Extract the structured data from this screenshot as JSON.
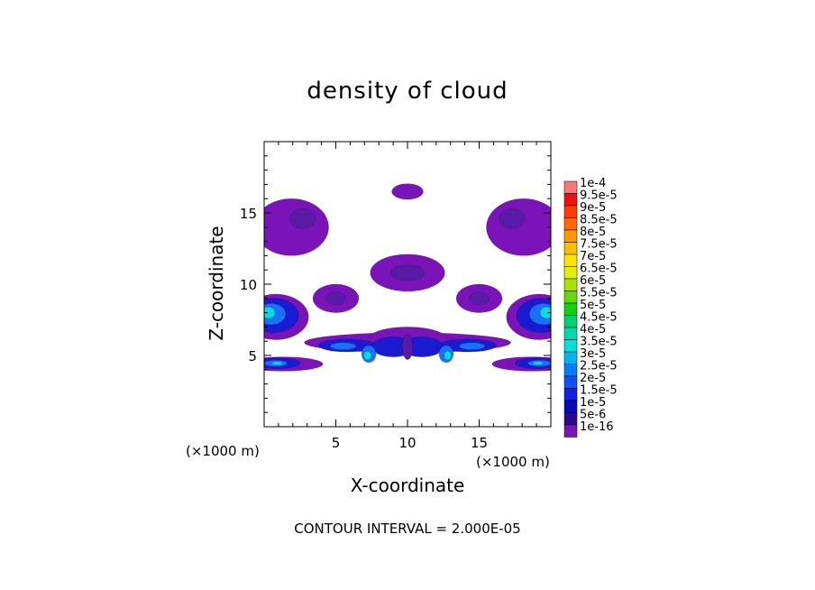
{
  "chart_data": {
    "type": "heatmap",
    "title": "density of cloud",
    "xlabel": "X-coordinate",
    "ylabel": "Z-coordinate",
    "x_unit": "(×1000 m)",
    "xlim": [
      0,
      20
    ],
    "ylim": [
      0,
      20
    ],
    "x_ticks": [
      5,
      10,
      15
    ],
    "y_ticks": [
      5,
      10,
      15
    ],
    "footer": "CONTOUR INTERVAL = 2.000E-05",
    "colorbar": {
      "labels": [
        "1e-4",
        "9.5e-5",
        "9e-5",
        "8.5e-5",
        "8e-5",
        "7.5e-5",
        "7e-5",
        "6.5e-5",
        "6e-5",
        "5.5e-5",
        "5e-5",
        "4.5e-5",
        "4e-5",
        "3.5e-5",
        "3e-5",
        "2.5e-5",
        "2e-5",
        "1.5e-5",
        "1e-5",
        "5e-6",
        "1e-16"
      ],
      "colors": [
        "#f87878",
        "#f01010",
        "#ff3c00",
        "#ff6a00",
        "#ff9800",
        "#ffbe00",
        "#ffe400",
        "#e0f000",
        "#a8e400",
        "#60dc00",
        "#10d210",
        "#00d070",
        "#00d8b0",
        "#00e0e0",
        "#00b4f0",
        "#0080ff",
        "#1050ff",
        "#1020e8",
        "#0a0ab8",
        "#2a0a90",
        "#7a14b8"
      ]
    },
    "cells": [
      {
        "x": 10,
        "z": 16.5,
        "rx": 1.1,
        "rz": 0.55,
        "level": 0
      },
      {
        "x": 10,
        "z": 10.8,
        "rx": 2.6,
        "rz": 1.3,
        "level": 0
      },
      {
        "x": 10,
        "z": 10.8,
        "rx": 1.2,
        "rz": 0.55,
        "level": 1
      },
      {
        "x": 1.9,
        "z": 14.0,
        "rx": 2.6,
        "rz": 2.0,
        "level": 0
      },
      {
        "x": 2.7,
        "z": 14.6,
        "rx": 0.9,
        "rz": 0.7,
        "level": 1
      },
      {
        "x": 18.1,
        "z": 14.0,
        "rx": 2.6,
        "rz": 2.0,
        "level": 0
      },
      {
        "x": 17.3,
        "z": 14.6,
        "rx": 0.9,
        "rz": 0.7,
        "level": 1
      },
      {
        "x": 5.0,
        "z": 9.0,
        "rx": 1.6,
        "rz": 1.0,
        "level": 0
      },
      {
        "x": 5.0,
        "z": 9.0,
        "rx": 0.7,
        "rz": 0.45,
        "level": 1
      },
      {
        "x": 15.0,
        "z": 9.0,
        "rx": 1.6,
        "rz": 1.0,
        "level": 0
      },
      {
        "x": 15.0,
        "z": 9.0,
        "rx": 0.7,
        "rz": 0.45,
        "level": 1
      },
      {
        "x": 0.8,
        "z": 7.7,
        "rx": 2.3,
        "rz": 1.6,
        "level": 0
      },
      {
        "x": 0.7,
        "z": 7.8,
        "rx": 1.7,
        "rz": 1.2,
        "level": 2
      },
      {
        "x": 0.5,
        "z": 7.9,
        "rx": 1.0,
        "rz": 0.75,
        "level": 3
      },
      {
        "x": 0.3,
        "z": 8.0,
        "rx": 0.45,
        "rz": 0.4,
        "level": 4
      },
      {
        "x": 19.2,
        "z": 7.7,
        "rx": 2.3,
        "rz": 1.6,
        "level": 0
      },
      {
        "x": 19.3,
        "z": 7.8,
        "rx": 1.7,
        "rz": 1.2,
        "level": 2
      },
      {
        "x": 19.5,
        "z": 7.9,
        "rx": 1.0,
        "rz": 0.75,
        "level": 3
      },
      {
        "x": 19.7,
        "z": 8.0,
        "rx": 0.45,
        "rz": 0.4,
        "level": 4
      },
      {
        "x": 10,
        "z": 5.9,
        "rx": 7.2,
        "rz": 0.7,
        "level": 0
      },
      {
        "x": 10,
        "z": 6.1,
        "rx": 2.8,
        "rz": 0.9,
        "level": 0
      },
      {
        "x": 5.8,
        "z": 5.7,
        "rx": 2.0,
        "rz": 0.45,
        "level": 2
      },
      {
        "x": 5.5,
        "z": 5.65,
        "rx": 0.9,
        "rz": 0.25,
        "level": 3
      },
      {
        "x": 14.2,
        "z": 5.7,
        "rx": 2.0,
        "rz": 0.45,
        "level": 2
      },
      {
        "x": 14.5,
        "z": 5.65,
        "rx": 0.9,
        "rz": 0.25,
        "level": 3
      },
      {
        "x": 9.0,
        "z": 5.6,
        "rx": 1.5,
        "rz": 0.7,
        "level": 2
      },
      {
        "x": 11.0,
        "z": 5.6,
        "rx": 1.5,
        "rz": 0.7,
        "level": 2
      },
      {
        "x": 7.3,
        "z": 5.1,
        "rx": 0.5,
        "rz": 0.6,
        "level": 3
      },
      {
        "x": 7.2,
        "z": 5.0,
        "rx": 0.25,
        "rz": 0.3,
        "level": 4
      },
      {
        "x": 12.7,
        "z": 5.1,
        "rx": 0.5,
        "rz": 0.6,
        "level": 3
      },
      {
        "x": 12.8,
        "z": 5.0,
        "rx": 0.25,
        "rz": 0.3,
        "level": 4
      },
      {
        "x": 10,
        "z": 5.6,
        "rx": 0.35,
        "rz": 0.9,
        "level": 1
      },
      {
        "x": 1.3,
        "z": 4.4,
        "rx": 2.8,
        "rz": 0.5,
        "level": 0
      },
      {
        "x": 1.0,
        "z": 4.45,
        "rx": 1.5,
        "rz": 0.38,
        "level": 2
      },
      {
        "x": 0.8,
        "z": 4.45,
        "rx": 0.8,
        "rz": 0.22,
        "level": 3
      },
      {
        "x": 0.9,
        "z": 4.45,
        "rx": 0.35,
        "rz": 0.12,
        "level": 4
      },
      {
        "x": 18.7,
        "z": 4.4,
        "rx": 2.8,
        "rz": 0.5,
        "level": 0
      },
      {
        "x": 19.0,
        "z": 4.45,
        "rx": 1.5,
        "rz": 0.38,
        "level": 2
      },
      {
        "x": 19.2,
        "z": 4.45,
        "rx": 0.8,
        "rz": 0.22,
        "level": 3
      },
      {
        "x": 19.1,
        "z": 4.45,
        "rx": 0.35,
        "rz": 0.12,
        "level": 4
      }
    ]
  },
  "level_colors": [
    "#7a14b8",
    "#5a1aa8",
    "#1a1ad0",
    "#1a70f8",
    "#00e0e0"
  ]
}
